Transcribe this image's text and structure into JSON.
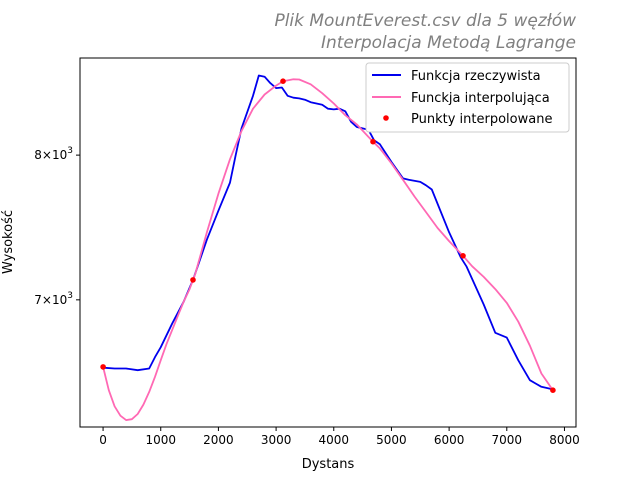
{
  "chart_data": {
    "type": "line",
    "title": "Plik MountEverest.csv dla 5 węzłów",
    "subtitle": "Interpolacja Metodą Lagrange",
    "xlabel": "Dystans",
    "ylabel": "Wysokość",
    "xlim": [
      -400,
      8200
    ],
    "ylim": [
      6225,
      8750
    ],
    "y_scale": "log",
    "x_ticks": [
      {
        "value": 0,
        "label": "0"
      },
      {
        "value": 1000,
        "label": "1000"
      },
      {
        "value": 2000,
        "label": "2000"
      },
      {
        "value": 3000,
        "label": "3000"
      },
      {
        "value": 4000,
        "label": "4000"
      },
      {
        "value": 5000,
        "label": "5000"
      },
      {
        "value": 6000,
        "label": "6000"
      },
      {
        "value": 7000,
        "label": "7000"
      },
      {
        "value": 8000,
        "label": "8000"
      }
    ],
    "y_ticks": [
      {
        "value": 7000,
        "mantissa": "7",
        "base": "10",
        "exponent": "3"
      },
      {
        "value": 8000,
        "mantissa": "8",
        "base": "10",
        "exponent": "3"
      }
    ],
    "grid": false,
    "legend": {
      "position": "top-right",
      "entries": [
        "Funkcja rzeczywista",
        "Funckja interpolująca",
        "Punkty interpolowane"
      ]
    },
    "series": [
      {
        "name": "Funkcja rzeczywista",
        "style": "line",
        "color": "#0000ee",
        "x": [
          0,
          200,
          400,
          600,
          800,
          900,
          1000,
          1200,
          1400,
          1560,
          1800,
          2000,
          2200,
          2300,
          2400,
          2600,
          2700,
          2800,
          2900,
          3000,
          3100,
          3200,
          3300,
          3400,
          3500,
          3600,
          3700,
          3800,
          3900,
          4000,
          4100,
          4200,
          4300,
          4400,
          4500,
          4600,
          4700,
          4800,
          5000,
          5200,
          5300,
          5500,
          5600,
          5700,
          6000,
          6200,
          6300,
          6600,
          6800,
          7000,
          7200,
          7400,
          7500,
          7600,
          7800
        ],
        "y": [
          6575,
          6570,
          6570,
          6560,
          6570,
          6640,
          6700,
          6850,
          6990,
          7130,
          7400,
          7600,
          7800,
          8000,
          8200,
          8450,
          8610,
          8600,
          8550,
          8510,
          8515,
          8450,
          8435,
          8430,
          8420,
          8400,
          8390,
          8380,
          8350,
          8345,
          8350,
          8330,
          8250,
          8210,
          8200,
          8190,
          8110,
          8080,
          7950,
          7830,
          7820,
          7805,
          7780,
          7750,
          7450,
          7280,
          7220,
          6970,
          6790,
          6760,
          6620,
          6500,
          6480,
          6460,
          6445
        ]
      },
      {
        "name": "Funckja interpolująca",
        "style": "line",
        "color": "#ff69b4",
        "x": [
          0,
          100,
          200,
          300,
          400,
          500,
          600,
          700,
          800,
          900,
          1000,
          1100,
          1200,
          1300,
          1400,
          1500,
          1560,
          1600,
          1800,
          2000,
          2200,
          2400,
          2600,
          2800,
          3000,
          3120,
          3300,
          3400,
          3600,
          3800,
          4000,
          4200,
          4400,
          4680,
          4800,
          5000,
          5200,
          5400,
          5600,
          5800,
          6000,
          6240,
          6400,
          6600,
          6800,
          7000,
          7200,
          7400,
          7600,
          7800
        ],
        "y": [
          6580,
          6440,
          6345,
          6290,
          6265,
          6270,
          6300,
          6355,
          6430,
          6520,
          6620,
          6720,
          6810,
          6900,
          6990,
          7070,
          7130,
          7170,
          7450,
          7720,
          7970,
          8180,
          8350,
          8460,
          8530,
          8565,
          8580,
          8578,
          8540,
          8470,
          8390,
          8300,
          8230,
          8100,
          8050,
          7940,
          7820,
          7700,
          7590,
          7480,
          7390,
          7290,
          7220,
          7150,
          7070,
          6980,
          6860,
          6710,
          6540,
          6440
        ]
      },
      {
        "name": "Punkty interpolowane",
        "style": "scatter",
        "color": "#ff0000",
        "x": [
          0,
          1560,
          3120,
          4680,
          6240,
          7800
        ],
        "y": [
          6580,
          7130,
          8565,
          8100,
          7290,
          6440
        ]
      }
    ]
  }
}
